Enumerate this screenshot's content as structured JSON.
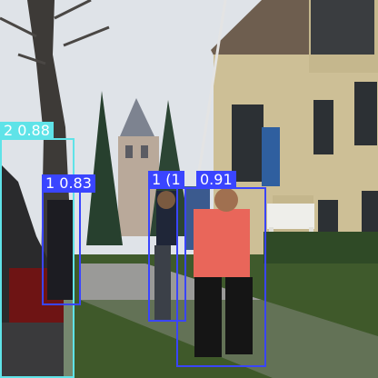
{
  "detections": [
    {
      "label": "2 0.88",
      "color": "#5fe3e8"
    },
    {
      "label": "1 0.83",
      "color": "#3a45ff"
    },
    {
      "label": "1 (1",
      "color": "#3a45ff"
    },
    {
      "label": "0.91",
      "color": "#3a45ff"
    }
  ]
}
